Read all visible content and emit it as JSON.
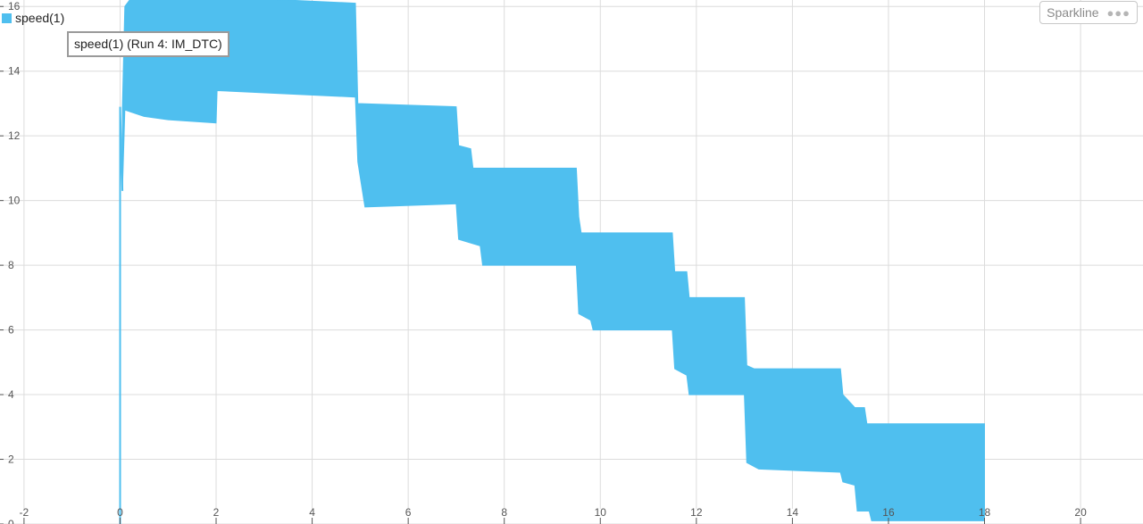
{
  "legend": {
    "label": "speed(1)",
    "color": "#4FBFEF"
  },
  "tooltip": {
    "text": "speed(1) (Run 4: IM_DTC)"
  },
  "toolbar": {
    "sparkline_label": "Sparkline",
    "more_icon": "more-dots-icon"
  },
  "chart_data": {
    "type": "area",
    "title": "",
    "xlabel": "",
    "ylabel": "",
    "xlim": [
      -2.5,
      21.3
    ],
    "ylim": [
      0,
      16.2
    ],
    "x_ticks": [
      -2,
      0,
      2,
      4,
      6,
      8,
      10,
      12,
      14,
      16,
      18,
      20
    ],
    "y_ticks": [
      0,
      2,
      4,
      6,
      8,
      10,
      12,
      14,
      16
    ],
    "grid": true,
    "legend_position": "top-left",
    "series": [
      {
        "name": "speed(1)",
        "color": "#4FBFEF",
        "description_type": "band",
        "upper": [
          [
            0.05,
            12.9
          ],
          [
            0.1,
            16.0
          ],
          [
            0.2,
            16.2
          ],
          [
            2.0,
            16.2
          ],
          [
            2.02,
            16.3
          ],
          [
            4.9,
            16.1
          ],
          [
            4.95,
            13.0
          ],
          [
            7.0,
            12.9
          ],
          [
            7.05,
            11.7
          ],
          [
            7.3,
            11.6
          ],
          [
            7.35,
            11.0
          ],
          [
            9.5,
            11.0
          ],
          [
            9.55,
            9.5
          ],
          [
            9.6,
            9.0
          ],
          [
            11.5,
            9.0
          ],
          [
            11.55,
            7.8
          ],
          [
            11.8,
            7.8
          ],
          [
            11.85,
            7.0
          ],
          [
            13.0,
            7.0
          ],
          [
            13.05,
            4.9
          ],
          [
            13.2,
            4.8
          ],
          [
            15.0,
            4.8
          ],
          [
            15.05,
            4.0
          ],
          [
            15.3,
            3.6
          ],
          [
            15.5,
            3.6
          ],
          [
            15.55,
            3.1
          ],
          [
            18.0,
            3.1
          ]
        ],
        "lower": [
          [
            0.05,
            10.3
          ],
          [
            0.1,
            12.8
          ],
          [
            0.5,
            12.6
          ],
          [
            1.0,
            12.5
          ],
          [
            2.0,
            12.4
          ],
          [
            2.02,
            13.4
          ],
          [
            4.9,
            13.2
          ],
          [
            4.95,
            11.2
          ],
          [
            5.1,
            9.8
          ],
          [
            7.0,
            9.9
          ],
          [
            7.05,
            8.8
          ],
          [
            7.5,
            8.6
          ],
          [
            7.55,
            8.0
          ],
          [
            9.5,
            8.0
          ],
          [
            9.55,
            6.5
          ],
          [
            9.8,
            6.3
          ],
          [
            9.85,
            6.0
          ],
          [
            11.5,
            6.0
          ],
          [
            11.55,
            4.8
          ],
          [
            11.8,
            4.6
          ],
          [
            11.85,
            4.0
          ],
          [
            13.0,
            4.0
          ],
          [
            13.05,
            1.9
          ],
          [
            13.3,
            1.7
          ],
          [
            15.0,
            1.6
          ],
          [
            15.05,
            1.3
          ],
          [
            15.3,
            1.2
          ],
          [
            15.35,
            0.4
          ],
          [
            15.6,
            0.4
          ],
          [
            15.65,
            0.1
          ],
          [
            18.0,
            0.1
          ]
        ],
        "startup_spike": [
          [
            0.0,
            0.0
          ],
          [
            0.0,
            12.9
          ],
          [
            0.05,
            10.3
          ]
        ]
      }
    ]
  }
}
